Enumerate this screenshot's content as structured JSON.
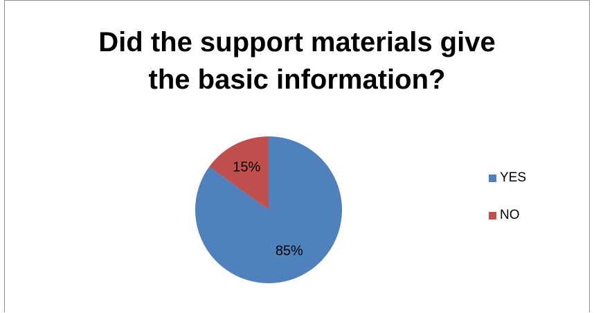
{
  "chart_data": {
    "type": "pie",
    "title_lines": [
      "Did the support materials give",
      "the basic information?"
    ],
    "categories": [
      "YES",
      "NO"
    ],
    "values": [
      85,
      15
    ],
    "data_labels": [
      "85%",
      "15%"
    ],
    "colors": [
      "#4F81BD",
      "#C0504D"
    ],
    "legend_position": "right"
  }
}
